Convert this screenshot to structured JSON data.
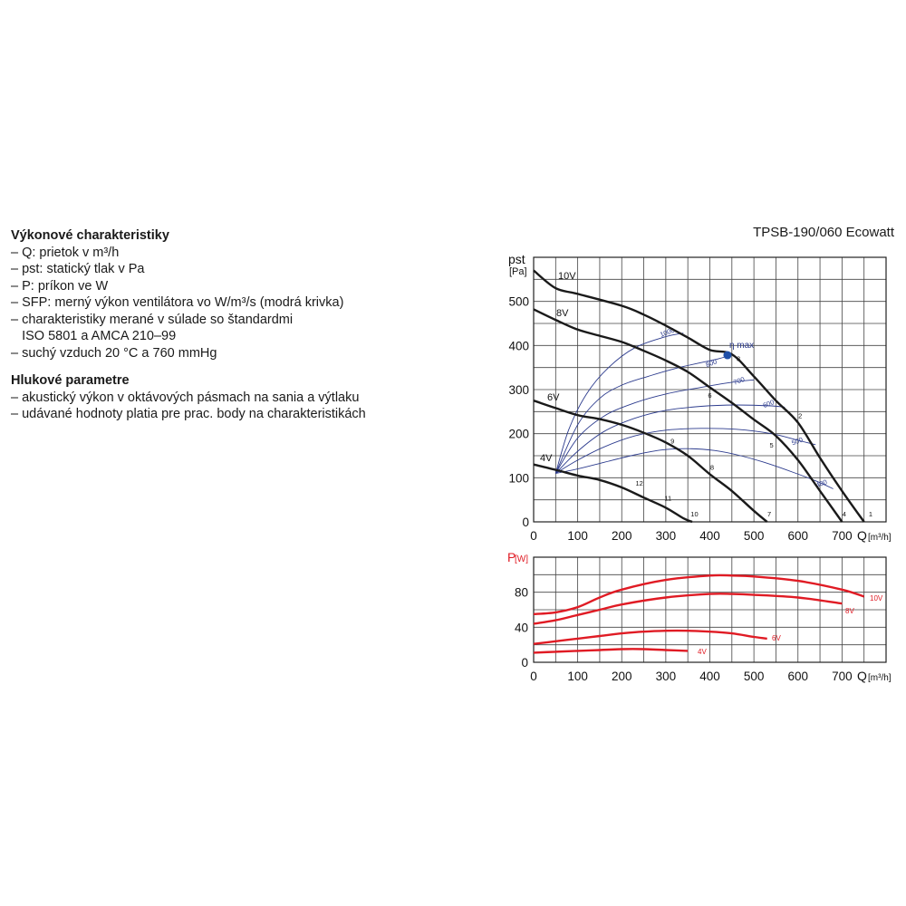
{
  "left_text": {
    "section1_title": "Výkonové charakteristiky",
    "section1_items": [
      "– Q: prietok v m³/h",
      "– pst: statický tlak v Pa",
      "– P: príkon ve W",
      "– SFP: merný výkon ventilátora vo W/m³/s (modrá krivka)",
      "– charakteristiky merané v súlade so štandardmi",
      "   ISO 5801 a AMCA 210–99",
      "– suchý vzduch 20 °C a 760 mmHg"
    ],
    "section2_title": "Hlukové parametre",
    "section2_items": [
      "– akustický výkon v oktávových pásmach na sania a výtlaku",
      "– udávané hodnoty platia pre prac. body na charakteristikách"
    ]
  },
  "chart_data": [
    {
      "type": "line",
      "title": "TPSB-190/060 Ecowatt",
      "ylabel_main": "pst",
      "ylabel_unit": "[Pa]",
      "xlabel_main": "Q",
      "xlabel_unit": "[m³/h]",
      "xlim": [
        0,
        800
      ],
      "ylim": [
        0,
        600
      ],
      "x_ticks": [
        0,
        100,
        200,
        300,
        400,
        500,
        600,
        700
      ],
      "y_ticks": [
        0,
        100,
        200,
        300,
        400,
        500
      ],
      "grid": true,
      "colors": {
        "fan_curve": "#1a1a1a",
        "sfp_curve": "#2d3c8e",
        "marker": "#1f4fa8"
      },
      "series": [
        {
          "name": "10V",
          "x": [
            0,
            50,
            100,
            200,
            250,
            300,
            350,
            400,
            450,
            500,
            550,
            600,
            650,
            700,
            750
          ],
          "y": [
            570,
            530,
            517,
            490,
            470,
            445,
            418,
            390,
            380,
            330,
            275,
            225,
            145,
            70,
            0
          ]
        },
        {
          "name": "8V",
          "x": [
            0,
            50,
            100,
            150,
            200,
            250,
            300,
            350,
            400,
            450,
            500,
            550,
            600,
            650,
            700
          ],
          "y": [
            482,
            458,
            436,
            422,
            408,
            388,
            366,
            340,
            305,
            270,
            232,
            195,
            140,
            70,
            0
          ]
        },
        {
          "name": "6V",
          "x": [
            0,
            50,
            100,
            150,
            200,
            250,
            300,
            350,
            400,
            450,
            500,
            530
          ],
          "y": [
            275,
            258,
            242,
            233,
            220,
            202,
            180,
            150,
            108,
            70,
            25,
            0
          ]
        },
        {
          "name": "4V",
          "x": [
            0,
            50,
            100,
            150,
            200,
            250,
            300,
            340,
            360
          ],
          "y": [
            130,
            118,
            105,
            95,
            78,
            55,
            32,
            8,
            0
          ]
        }
      ],
      "sfp_curves": [
        {
          "name": "1000",
          "label_x": 305,
          "label_y": 425,
          "x": [
            50,
            80,
            120,
            170,
            230,
            300,
            340
          ],
          "y": [
            110,
            210,
            290,
            350,
            395,
            420,
            428
          ]
        },
        {
          "name": "800",
          "label_x": 405,
          "label_y": 355,
          "x": [
            50,
            100,
            150,
            200,
            260,
            330,
            420,
            450
          ],
          "y": [
            110,
            220,
            280,
            310,
            330,
            350,
            370,
            380
          ]
        },
        {
          "name": "700",
          "label_x": 468,
          "label_y": 315,
          "x": [
            50,
            100,
            160,
            230,
            300,
            380,
            460,
            500
          ],
          "y": [
            110,
            190,
            240,
            270,
            290,
            305,
            318,
            322
          ]
        },
        {
          "name": "600",
          "label_x": 535,
          "label_y": 263,
          "x": [
            50,
            100,
            160,
            230,
            300,
            380,
            460,
            540,
            570
          ],
          "y": [
            110,
            160,
            205,
            235,
            253,
            262,
            265,
            263,
            260
          ]
        },
        {
          "name": "500",
          "label_x": 600,
          "label_y": 178,
          "x": [
            50,
            100,
            160,
            230,
            300,
            380,
            460,
            540,
            600,
            640
          ],
          "y": [
            110,
            140,
            170,
            195,
            208,
            212,
            210,
            200,
            185,
            175
          ]
        },
        {
          "name": "400",
          "label_x": 655,
          "label_y": 82,
          "x": [
            50,
            100,
            160,
            230,
            290,
            350,
            410,
            470,
            530,
            590,
            640,
            680
          ],
          "y": [
            110,
            120,
            135,
            152,
            163,
            166,
            162,
            150,
            133,
            112,
            93,
            75
          ]
        }
      ],
      "eta_max": {
        "label": "η max",
        "x": 440,
        "y": 378
      },
      "points": [
        {
          "label": "1",
          "x": 765,
          "y": 12
        },
        {
          "label": "2",
          "x": 605,
          "y": 235
        },
        {
          "label": "3",
          "x": 465,
          "y": 365
        },
        {
          "label": "4",
          "x": 705,
          "y": 12
        },
        {
          "label": "5",
          "x": 540,
          "y": 168
        },
        {
          "label": "6",
          "x": 400,
          "y": 282
        },
        {
          "label": "7",
          "x": 535,
          "y": 12
        },
        {
          "label": "8",
          "x": 405,
          "y": 118
        },
        {
          "label": "9",
          "x": 315,
          "y": 178
        },
        {
          "label": "10",
          "x": 365,
          "y": 12
        },
        {
          "label": "11",
          "x": 305,
          "y": 48
        },
        {
          "label": "12",
          "x": 240,
          "y": 82
        }
      ]
    },
    {
      "type": "line",
      "ylabel_main": "P",
      "ylabel_unit": "[W]",
      "xlabel_main": "Q",
      "xlabel_unit": "[m³/h]",
      "xlim": [
        0,
        800
      ],
      "ylim": [
        0,
        120
      ],
      "x_ticks": [
        0,
        100,
        200,
        300,
        400,
        500,
        600,
        700
      ],
      "y_ticks": [
        0,
        40,
        80
      ],
      "grid": true,
      "colors": {
        "curve": "#e01b24",
        "label": "#e01b24"
      },
      "series": [
        {
          "name": "10V",
          "x": [
            0,
            50,
            100,
            150,
            200,
            300,
            400,
            450,
            500,
            600,
            700,
            750
          ],
          "y": [
            55,
            57,
            63,
            74,
            83,
            94,
            99,
            99,
            98,
            93,
            83,
            75
          ]
        },
        {
          "name": "8V",
          "x": [
            0,
            50,
            100,
            150,
            200,
            300,
            400,
            450,
            500,
            600,
            700
          ],
          "y": [
            44,
            48,
            54,
            60,
            66,
            74,
            78,
            78,
            77,
            74,
            67
          ]
        },
        {
          "name": "6V",
          "x": [
            0,
            50,
            100,
            150,
            200,
            250,
            300,
            350,
            400,
            450,
            500,
            530
          ],
          "y": [
            21,
            24,
            27,
            30,
            33,
            35,
            36,
            36,
            35,
            33,
            29,
            27
          ]
        },
        {
          "name": "4V",
          "x": [
            0,
            50,
            100,
            150,
            200,
            250,
            300,
            350
          ],
          "y": [
            11,
            12,
            13,
            14,
            15,
            15,
            14,
            13
          ]
        }
      ]
    }
  ]
}
